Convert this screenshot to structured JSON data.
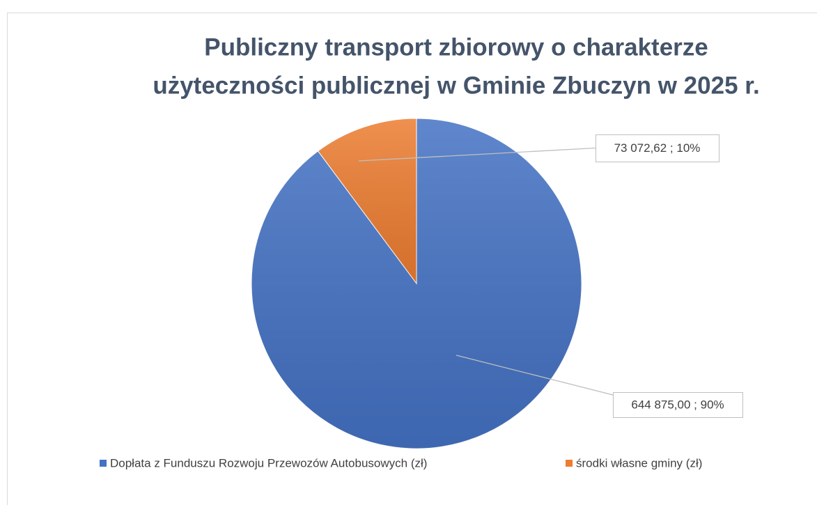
{
  "chart_data": {
    "type": "pie",
    "title": [
      "Publiczny transport zbiorowy o charakterze",
      "użyteczności publicznej w Gminie Zbuczyn w 2025 r."
    ],
    "categories": [
      "Dopłata z Funduszu Rozwoju Przewozów Autobusowych (zł)",
      "środki własne gminy (zł)"
    ],
    "values": [
      644875.0,
      73072.62
    ],
    "value_labels": [
      "644 875,00 ; 90%",
      "73 072,62 ; 10%"
    ],
    "colors": [
      "#4472c4",
      "#ed7d31"
    ],
    "legend": "bottom"
  }
}
